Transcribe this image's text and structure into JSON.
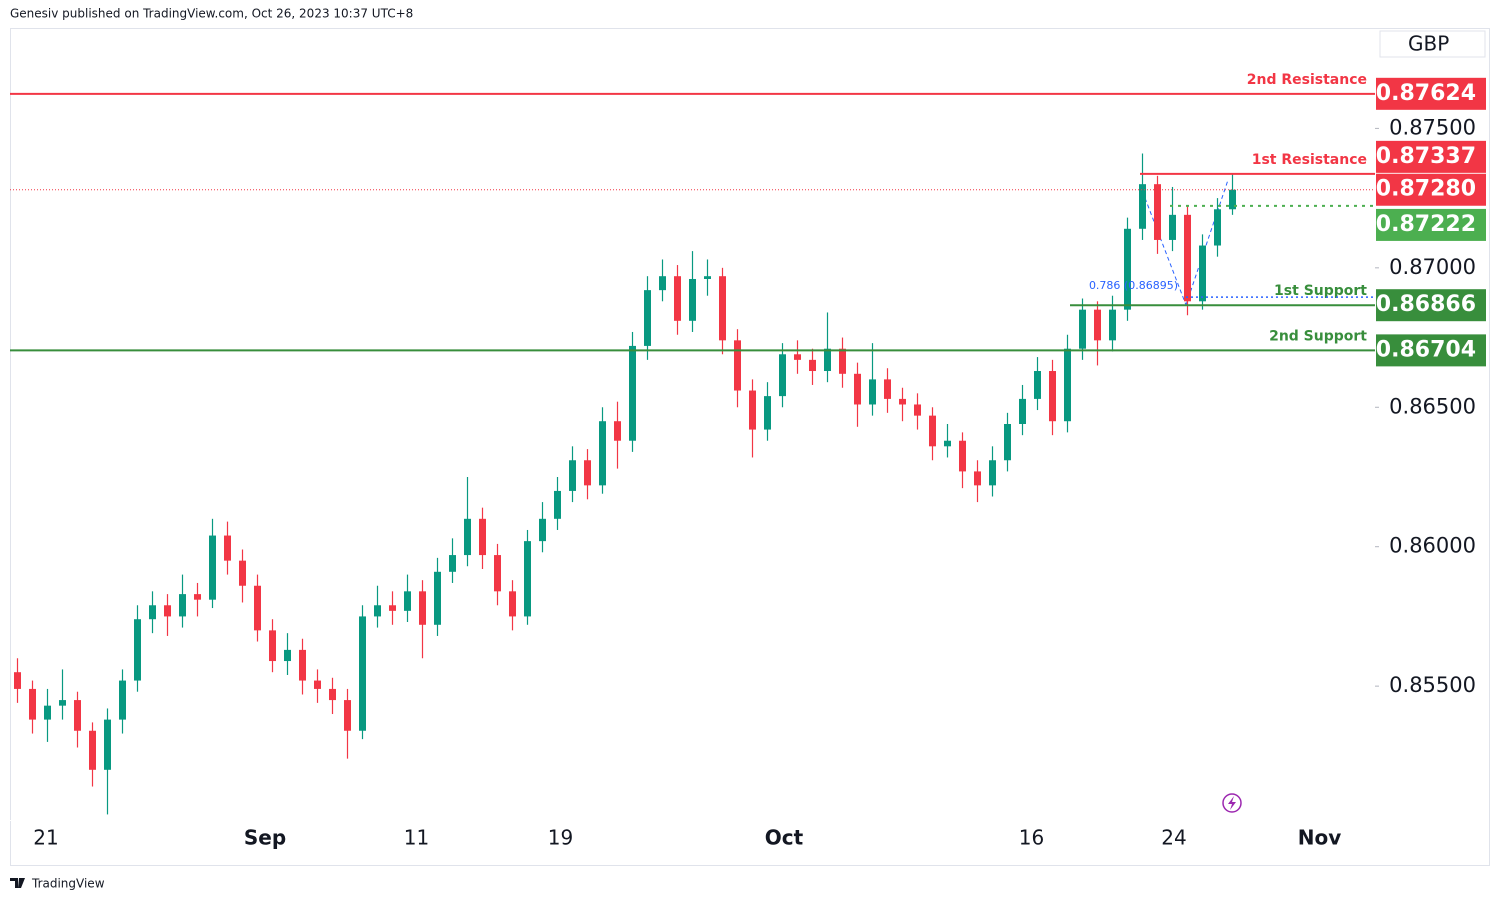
{
  "header": "Genesiv published on TradingView.com, Oct 26, 2023 10:37 UTC+8",
  "footer": "TradingView",
  "chart_data": {
    "type": "candlestick",
    "currency": "GBP",
    "up_color": "#089981",
    "down_color": "#f23645",
    "ylim": [
      0.8502,
      0.8786
    ],
    "yticks": [
      {
        "value": 0.875,
        "label": "0.87500"
      },
      {
        "value": 0.87,
        "label": "0.87000"
      },
      {
        "value": 0.865,
        "label": "0.86500"
      },
      {
        "value": 0.86,
        "label": "0.86000"
      },
      {
        "value": 0.855,
        "label": "0.85500"
      }
    ],
    "xlim": [
      0,
      91
    ],
    "xticks": [
      {
        "value": 2.4,
        "label": "21"
      },
      {
        "value": 17,
        "label": "Sep"
      },
      {
        "value": 27.1,
        "label": "11"
      },
      {
        "value": 36.7,
        "label": "19"
      },
      {
        "value": 51.6,
        "label": "Oct"
      },
      {
        "value": 68.1,
        "label": "16"
      },
      {
        "value": 77.6,
        "label": "24"
      },
      {
        "value": 87.3,
        "label": "Nov"
      }
    ],
    "grid": false,
    "levels": [
      {
        "name": "2nd Resistance",
        "value": 0.87624,
        "color": "#f23645"
      },
      {
        "name": "1st Resistance",
        "value": 0.87337,
        "color": "#f23645"
      },
      {
        "value": 0.8728,
        "label": "0.87280",
        "color": "#f23645"
      },
      {
        "value": 0.87222,
        "color": "#4caf50"
      },
      {
        "name": "1st Support",
        "value": 0.86866,
        "color": "#388e3c"
      },
      {
        "name": "2nd Support",
        "value": 0.86704,
        "color": "#388e3c"
      }
    ],
    "fib": {
      "label": "0.786 (0.86895)",
      "value": 0.86895,
      "color": "#2962ff"
    },
    "ohlc": [
      [
        0.8555,
        0.856,
        0.8544,
        0.8549
      ],
      [
        0.8549,
        0.8552,
        0.8533,
        0.8538
      ],
      [
        0.8538,
        0.8549,
        0.853,
        0.8543
      ],
      [
        0.8543,
        0.8556,
        0.8538,
        0.8545
      ],
      [
        0.8545,
        0.8548,
        0.8528,
        0.8534
      ],
      [
        0.8534,
        0.8537,
        0.8514,
        0.852
      ],
      [
        0.852,
        0.8542,
        0.8504,
        0.8538
      ],
      [
        0.8538,
        0.8556,
        0.8533,
        0.8552
      ],
      [
        0.8552,
        0.8579,
        0.8548,
        0.8574
      ],
      [
        0.8574,
        0.8584,
        0.8569,
        0.8579
      ],
      [
        0.8579,
        0.8583,
        0.8568,
        0.8575
      ],
      [
        0.8575,
        0.859,
        0.8571,
        0.8583
      ],
      [
        0.8583,
        0.8587,
        0.8575,
        0.8581
      ],
      [
        0.8581,
        0.861,
        0.8578,
        0.8604
      ],
      [
        0.8604,
        0.8609,
        0.859,
        0.8595
      ],
      [
        0.8595,
        0.8599,
        0.858,
        0.8586
      ],
      [
        0.8586,
        0.859,
        0.8566,
        0.857
      ],
      [
        0.857,
        0.8574,
        0.8555,
        0.8559
      ],
      [
        0.8559,
        0.8569,
        0.8554,
        0.8563
      ],
      [
        0.8563,
        0.8567,
        0.8547,
        0.8552
      ],
      [
        0.8552,
        0.8556,
        0.8544,
        0.8549
      ],
      [
        0.8549,
        0.8553,
        0.854,
        0.8545
      ],
      [
        0.8545,
        0.8549,
        0.8524,
        0.8534
      ],
      [
        0.8534,
        0.8579,
        0.8531,
        0.8575
      ],
      [
        0.8575,
        0.8586,
        0.8571,
        0.8579
      ],
      [
        0.8579,
        0.8584,
        0.8572,
        0.8577
      ],
      [
        0.8577,
        0.859,
        0.8573,
        0.8584
      ],
      [
        0.8584,
        0.8588,
        0.856,
        0.8572
      ],
      [
        0.8572,
        0.8596,
        0.8568,
        0.8591
      ],
      [
        0.8591,
        0.8603,
        0.8587,
        0.8597
      ],
      [
        0.8597,
        0.8625,
        0.8593,
        0.861
      ],
      [
        0.861,
        0.8614,
        0.8592,
        0.8597
      ],
      [
        0.8597,
        0.8601,
        0.8579,
        0.8584
      ],
      [
        0.8584,
        0.8588,
        0.857,
        0.8575
      ],
      [
        0.8575,
        0.8606,
        0.8572,
        0.8602
      ],
      [
        0.8602,
        0.8616,
        0.8598,
        0.861
      ],
      [
        0.861,
        0.8625,
        0.8606,
        0.862
      ],
      [
        0.862,
        0.8636,
        0.8616,
        0.8631
      ],
      [
        0.8631,
        0.8635,
        0.8617,
        0.8622
      ],
      [
        0.8622,
        0.865,
        0.8619,
        0.8645
      ],
      [
        0.8645,
        0.8652,
        0.8628,
        0.8638
      ],
      [
        0.8638,
        0.8677,
        0.8634,
        0.8672
      ],
      [
        0.8672,
        0.8697,
        0.8667,
        0.8692
      ],
      [
        0.8692,
        0.8703,
        0.8688,
        0.8697
      ],
      [
        0.8697,
        0.8701,
        0.8676,
        0.8681
      ],
      [
        0.8681,
        0.8706,
        0.8677,
        0.8696
      ],
      [
        0.8696,
        0.8703,
        0.869,
        0.8697
      ],
      [
        0.8697,
        0.87,
        0.8669,
        0.8674
      ],
      [
        0.8674,
        0.8678,
        0.865,
        0.8656
      ],
      [
        0.8656,
        0.866,
        0.8632,
        0.8642
      ],
      [
        0.8642,
        0.8659,
        0.8638,
        0.8654
      ],
      [
        0.8654,
        0.8673,
        0.865,
        0.8669
      ],
      [
        0.8669,
        0.8674,
        0.8662,
        0.8667
      ],
      [
        0.8667,
        0.8671,
        0.8658,
        0.8663
      ],
      [
        0.8663,
        0.8684,
        0.8659,
        0.8671
      ],
      [
        0.8671,
        0.8675,
        0.8657,
        0.8662
      ],
      [
        0.8662,
        0.8666,
        0.8643,
        0.8651
      ],
      [
        0.8651,
        0.8673,
        0.8647,
        0.866
      ],
      [
        0.866,
        0.8664,
        0.8648,
        0.8653
      ],
      [
        0.8653,
        0.8657,
        0.8645,
        0.8651
      ],
      [
        0.8651,
        0.8655,
        0.8642,
        0.8647
      ],
      [
        0.8647,
        0.865,
        0.8631,
        0.8636
      ],
      [
        0.8636,
        0.8644,
        0.8632,
        0.8638
      ],
      [
        0.8638,
        0.8641,
        0.8621,
        0.8627
      ],
      [
        0.8627,
        0.8631,
        0.8616,
        0.8622
      ],
      [
        0.8622,
        0.8636,
        0.8618,
        0.8631
      ],
      [
        0.8631,
        0.8648,
        0.8627,
        0.8644
      ],
      [
        0.8644,
        0.8658,
        0.864,
        0.8653
      ],
      [
        0.8653,
        0.8668,
        0.8649,
        0.8663
      ],
      [
        0.8663,
        0.8667,
        0.864,
        0.8645
      ],
      [
        0.8645,
        0.8676,
        0.8641,
        0.8671
      ],
      [
        0.8671,
        0.8689,
        0.8667,
        0.8685
      ],
      [
        0.8685,
        0.8688,
        0.8665,
        0.8674
      ],
      [
        0.8674,
        0.869,
        0.867,
        0.8685
      ],
      [
        0.8685,
        0.8718,
        0.8681,
        0.8714
      ],
      [
        0.8714,
        0.8741,
        0.871,
        0.873
      ],
      [
        0.873,
        0.8733,
        0.8705,
        0.871
      ],
      [
        0.871,
        0.8729,
        0.8706,
        0.8719
      ],
      [
        0.8719,
        0.8722,
        0.8683,
        0.8688
      ],
      [
        0.8688,
        0.8712,
        0.8685,
        0.8708
      ],
      [
        0.8708,
        0.8725,
        0.8704,
        0.8721
      ],
      [
        0.8721,
        0.8734,
        0.8719,
        0.8728
      ]
    ]
  }
}
